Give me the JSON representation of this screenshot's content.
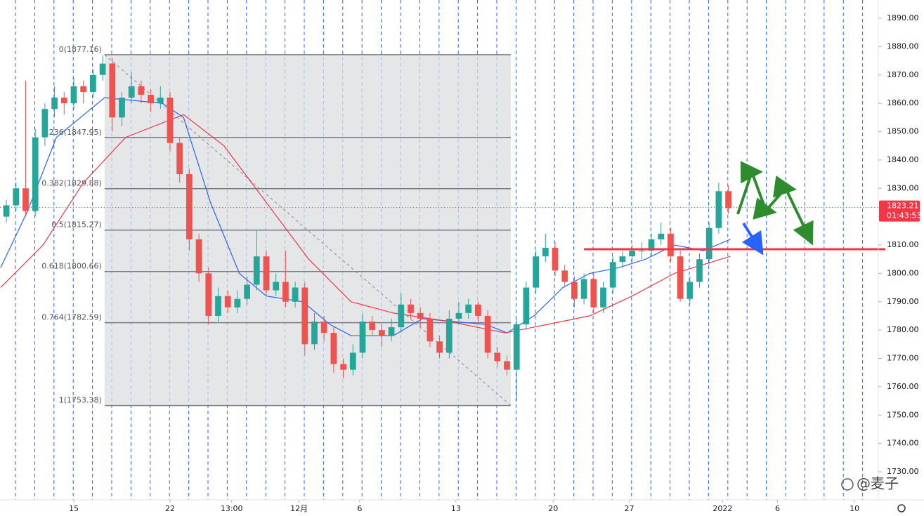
{
  "chart_data": {
    "type": "candlestick",
    "xlim": [
      -3.832,
      41.788
    ],
    "ylim": [
      1720.59,
      1896.44
    ],
    "yticks": [
      {
        "value": 1890,
        "label": "1890.00"
      },
      {
        "value": 1880,
        "label": "1880.00"
      },
      {
        "value": 1870,
        "label": "1870.00"
      },
      {
        "value": 1860,
        "label": "1860.00"
      },
      {
        "value": 1850,
        "label": "1850.00"
      },
      {
        "value": 1840,
        "label": "1840.00"
      },
      {
        "value": 1830,
        "label": "1830.00"
      },
      {
        "value": 1820,
        "label": "1820.00"
      },
      {
        "value": 1810,
        "label": "1810.00"
      },
      {
        "value": 1800,
        "label": "1800.00"
      },
      {
        "value": 1790,
        "label": "1790.00"
      },
      {
        "value": 1780,
        "label": "1780.00"
      },
      {
        "value": 1770,
        "label": "1770.00"
      },
      {
        "value": 1760,
        "label": "1760.00"
      },
      {
        "value": 1750,
        "label": "1750.00"
      },
      {
        "value": 1740,
        "label": "1740.00"
      },
      {
        "value": 1730,
        "label": "1730.00"
      }
    ],
    "xticks": [
      {
        "value": 0,
        "label": "15"
      },
      {
        "value": 5,
        "label": "22"
      },
      {
        "value": 8.2,
        "label": "13:00"
      },
      {
        "value": 11.7,
        "label": "12月"
      },
      {
        "value": 14.85,
        "label": "6"
      },
      {
        "value": 19.85,
        "label": "13"
      },
      {
        "value": 24.9,
        "label": "20"
      },
      {
        "value": 28.85,
        "label": "27"
      },
      {
        "value": 33.7,
        "label": "2022"
      },
      {
        "value": 36.55,
        "label": "6"
      },
      {
        "value": 40.55,
        "label": "10"
      }
    ],
    "up_color": "#26a69a",
    "down_color": "#ef5350",
    "candles": {
      "x": [
        -3.5,
        -3,
        -2.5,
        -2,
        -1.5,
        -1,
        -0.5,
        0,
        0.5,
        1,
        1.5,
        2,
        2.5,
        3,
        3.5,
        4,
        4.5,
        5,
        5.5,
        6,
        6.5,
        7,
        7.5,
        8,
        8.5,
        9,
        9.5,
        10,
        10.5,
        11,
        11.5,
        12,
        12.5,
        13,
        13.5,
        14,
        14.5,
        15,
        15.5,
        16,
        16.5,
        17,
        17.5,
        18,
        18.5,
        19,
        19.5,
        20,
        20.5,
        21,
        21.5,
        22,
        22.5,
        23,
        23.5,
        24,
        24.5,
        25,
        25.5,
        26,
        26.5,
        27,
        27.5,
        28,
        28.5,
        29,
        29.5,
        30,
        30.5,
        31,
        31.5,
        32,
        32.5,
        33,
        33.5,
        34
      ],
      "open": [
        1820,
        1824,
        1830,
        1822,
        1848,
        1858,
        1862,
        1860,
        1866,
        1864,
        1870,
        1874,
        1855,
        1862,
        1866,
        1863,
        1860,
        1862,
        1846,
        1835,
        1812,
        1800,
        1785,
        1792,
        1788,
        1791,
        1796,
        1806,
        1794,
        1797,
        1790,
        1795,
        1775,
        1783,
        1779,
        1768,
        1766,
        1772,
        1783,
        1780,
        1778,
        1781,
        1789,
        1786,
        1784,
        1776,
        1772,
        1784,
        1786,
        1789,
        1785,
        1772,
        1769,
        1766,
        1782,
        1795,
        1806,
        1809,
        1801,
        1797,
        1791,
        1798,
        1788,
        1795,
        1804,
        1806,
        1808,
        1808,
        1812,
        1814,
        1806,
        1791,
        1797,
        1805,
        1816,
        1829
      ],
      "high": [
        1826,
        1832,
        1868,
        1851,
        1860,
        1866,
        1864,
        1869,
        1868,
        1872,
        1877,
        1876,
        1864,
        1871,
        1868,
        1865,
        1866,
        1864,
        1848,
        1837,
        1814,
        1802,
        1795,
        1794,
        1794,
        1799,
        1815,
        1808,
        1800,
        1808,
        1797,
        1797,
        1786,
        1785,
        1781,
        1770,
        1775,
        1786,
        1785,
        1782,
        1784,
        1793,
        1791,
        1788,
        1786,
        1778,
        1787,
        1790,
        1791,
        1790,
        1787,
        1774,
        1771,
        1784,
        1797,
        1808,
        1814,
        1811,
        1803,
        1799,
        1800,
        1800,
        1797,
        1806,
        1808,
        1810,
        1811,
        1814,
        1818,
        1816,
        1808,
        1799,
        1807,
        1818,
        1832,
        1831
      ],
      "low": [
        1818,
        1822,
        1820,
        1820,
        1845,
        1855,
        1856,
        1858,
        1860,
        1862,
        1868,
        1850,
        1852,
        1860,
        1860,
        1857,
        1858,
        1843,
        1832,
        1808,
        1797,
        1782,
        1783,
        1786,
        1786,
        1789,
        1794,
        1792,
        1792,
        1788,
        1788,
        1771,
        1773,
        1776,
        1765,
        1763,
        1764,
        1770,
        1778,
        1774,
        1776,
        1779,
        1784,
        1781,
        1774,
        1770,
        1770,
        1782,
        1784,
        1783,
        1770,
        1767,
        1764,
        1755,
        1780,
        1793,
        1804,
        1799,
        1795,
        1788,
        1789,
        1786,
        1786,
        1793,
        1802,
        1804,
        1805,
        1806,
        1810,
        1804,
        1790,
        1789,
        1795,
        1803,
        1814,
        1821
      ],
      "close": [
        1824,
        1830,
        1822,
        1848,
        1858,
        1862,
        1860,
        1866,
        1864,
        1870,
        1874,
        1855,
        1862,
        1866,
        1863,
        1860,
        1862,
        1846,
        1835,
        1812,
        1800,
        1785,
        1792,
        1788,
        1791,
        1796,
        1806,
        1794,
        1797,
        1790,
        1795,
        1775,
        1783,
        1779,
        1768,
        1766,
        1772,
        1783,
        1780,
        1778,
        1781,
        1789,
        1786,
        1784,
        1776,
        1772,
        1784,
        1786,
        1789,
        1785,
        1772,
        1769,
        1766,
        1782,
        1795,
        1806,
        1809,
        1801,
        1797,
        1791,
        1798,
        1788,
        1795,
        1804,
        1806,
        1808,
        1808,
        1812,
        1814,
        1806,
        1791,
        1797,
        1805,
        1816,
        1829,
        1823
      ]
    },
    "overlays": [
      {
        "color": "#2962ff",
        "x": [
          -3.8,
          -2.4,
          -0.9,
          1.6,
          4.6,
          5.7,
          7.1,
          8.6,
          10.0,
          11.9,
          13.3,
          14.4,
          16.6,
          18.1,
          21.4,
          22.5,
          23.9,
          25.4,
          26.8,
          28.3,
          29.7,
          31.2,
          32.7,
          34.1
        ],
        "values": [
          1802,
          1822,
          1848,
          1862,
          1860,
          1855,
          1825,
          1800,
          1792,
          1790,
          1782,
          1778,
          1778,
          1784,
          1782,
          1779,
          1785,
          1795,
          1800,
          1802,
          1805,
          1810,
          1808,
          1812
        ]
      },
      {
        "color": "#f23645",
        "x": [
          -3.8,
          -1.6,
          0.5,
          2.7,
          5.7,
          7.8,
          10.0,
          12.2,
          14.4,
          16.6,
          19.5,
          22.4,
          24.6,
          26.8,
          29.0,
          31.2,
          34.1
        ],
        "values": [
          1795,
          1810,
          1832,
          1848,
          1856,
          1845,
          1825,
          1805,
          1790,
          1786,
          1783,
          1779,
          1782,
          1785,
          1792,
          1800,
          1806
        ]
      }
    ],
    "fib": {
      "x_range": [
        1.6,
        22.7
      ],
      "levels": [
        {
          "label": "0(1877.16)",
          "value": 1877.16
        },
        {
          "label": "0.236(1847.95)",
          "value": 1847.95
        },
        {
          "label": "0.382(1829.88)",
          "value": 1829.88
        },
        {
          "label": "0.5(1815.27)",
          "value": 1815.27
        },
        {
          "label": "0.618(1800.66)",
          "value": 1800.66
        },
        {
          "label": "0.764(1782.59)",
          "value": 1782.59
        },
        {
          "label": "1(1753.38)",
          "value": 1753.38
        }
      ]
    },
    "hline": {
      "value": 1808.5,
      "from": 26.5,
      "color": "#f23645"
    },
    "last_price": 1823.21,
    "countdown": "01:43:53",
    "watermark": "@麦子"
  }
}
